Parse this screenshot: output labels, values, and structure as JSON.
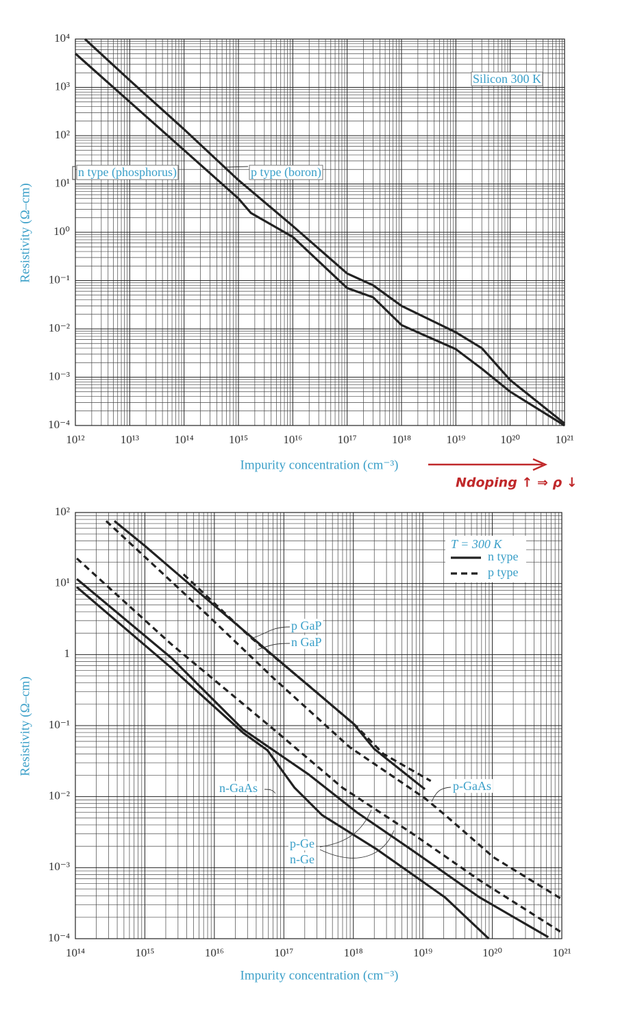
{
  "chart_data": [
    {
      "type": "line",
      "log_scale": true,
      "grid": true,
      "xlabel": "Impurity concentration (cm⁻³)",
      "ylabel": "Resistivity (Ω–cm)",
      "annotations": [
        "Silicon 300 K"
      ],
      "xlim": [
        1000000000000.0,
        1e+21
      ],
      "xticks": [
        {
          "value": 1000000000000.0,
          "label": "10¹²"
        },
        {
          "value": 10000000000000.0,
          "label": "10¹³"
        },
        {
          "value": 100000000000000.0,
          "label": "10¹⁴"
        },
        {
          "value": 1000000000000000.0,
          "label": "10¹⁵"
        },
        {
          "value": 1e+16,
          "label": "10¹⁶"
        },
        {
          "value": 1e+17,
          "label": "10¹⁷"
        },
        {
          "value": 1e+18,
          "label": "10¹⁸"
        },
        {
          "value": 1e+19,
          "label": "10¹⁹"
        },
        {
          "value": 1e+20,
          "label": "10²⁰"
        },
        {
          "value": 1e+21,
          "label": "10²¹"
        }
      ],
      "ylim": [
        0.0001,
        10000.0
      ],
      "yticks": [
        {
          "value": 0.0001,
          "label": "10⁻⁴"
        },
        {
          "value": 0.001,
          "label": "10⁻³"
        },
        {
          "value": 0.01,
          "label": "10⁻²"
        },
        {
          "value": 0.1,
          "label": "10⁻¹"
        },
        {
          "value": 1,
          "label": "10⁰"
        },
        {
          "value": 10,
          "label": "10¹"
        },
        {
          "value": 100,
          "label": "10²"
        },
        {
          "value": 1000,
          "label": "10³"
        },
        {
          "value": 10000,
          "label": "10⁴"
        }
      ],
      "series": [
        {
          "name": "n type (phosphorus)",
          "color": "#222222",
          "style": "solid",
          "x": [
            1000000000000.0,
            10000000000000.0,
            100000000000000.0,
            1000000000000000.0,
            1700000000000000.0,
            1e+16,
            1e+17,
            3e+17,
            1e+18,
            1e+19,
            3e+19,
            1e+20,
            1e+21
          ],
          "values": [
            5000,
            500,
            50,
            5,
            2.5,
            0.8,
            0.07,
            0.045,
            0.012,
            0.0038,
            0.0015,
            0.0005,
            0.0001
          ]
        },
        {
          "name": "p type (boron)",
          "color": "#222222",
          "style": "solid",
          "x": [
            1500000000000.0,
            10000000000000.0,
            100000000000000.0,
            1000000000000000.0,
            1e+16,
            1e+17,
            3e+17,
            1e+18,
            1e+19,
            3e+19,
            1e+20,
            1e+21
          ],
          "values": [
            10000,
            1400,
            135,
            12,
            1.35,
            0.14,
            0.08,
            0.03,
            0.0085,
            0.004,
            0.00087,
            0.00011
          ]
        }
      ]
    },
    {
      "type": "line",
      "log_scale": true,
      "grid": true,
      "xlabel": "Impurity concentration (cm⁻³)",
      "ylabel": "Resistivity (Ω–cm)",
      "legend_title": "T = 300 K",
      "legend": [
        {
          "label": "n type",
          "style": "solid"
        },
        {
          "label": "p type",
          "style": "dashed"
        }
      ],
      "xlim": [
        100000000000000.0,
        1e+21
      ],
      "xticks": [
        {
          "value": 100000000000000.0,
          "label": "10¹⁴"
        },
        {
          "value": 1000000000000000.0,
          "label": "10¹⁵"
        },
        {
          "value": 1e+16,
          "label": "10¹⁶"
        },
        {
          "value": 1e+17,
          "label": "10¹⁷"
        },
        {
          "value": 1e+18,
          "label": "10¹⁸"
        },
        {
          "value": 1e+19,
          "label": "10¹⁹"
        },
        {
          "value": 1e+20,
          "label": "10²⁰"
        },
        {
          "value": 1e+21,
          "label": "10²¹"
        }
      ],
      "ylim": [
        0.0001,
        100
      ],
      "yticks": [
        {
          "value": 0.0001,
          "label": "10⁻⁴"
        },
        {
          "value": 0.001,
          "label": "10⁻³"
        },
        {
          "value": 0.01,
          "label": "10⁻²"
        },
        {
          "value": 0.1,
          "label": "10⁻¹"
        },
        1,
        {
          "value": 10,
          "label": "10¹"
        },
        {
          "value": 100,
          "label": "10²"
        }
      ],
      "series": [
        {
          "name": "n GaP",
          "color": "#222222",
          "style": "solid",
          "x": [
            365000000000000.0,
            1000000000000000.0,
            1e+16,
            1e+17,
            1e+18,
            2e+18,
            1.07e+19
          ],
          "values": [
            76,
            34,
            4.9,
            0.72,
            0.107,
            0.047,
            0.0127
          ]
        },
        {
          "name": "p GaP",
          "color": "#222222",
          "style": "dashed",
          "x": [
            3600000000000000.0,
            3.3e+16,
            2.25e+17,
            1.1e+18,
            2.7e+18,
            1.3e+19
          ],
          "values": [
            13.5,
            1.76,
            0.37,
            0.098,
            0.04,
            0.0166
          ]
        },
        {
          "name": "p-GaAs",
          "color": "#222222",
          "style": "dashed",
          "x": [
            278000000000000.0,
            7500000000000000.0,
            7.2e+16,
            8.8e+17,
            1.07e+19,
            2.1e+19,
            1.04e+20,
            1e+21
          ],
          "values": [
            76,
            3.8,
            0.46,
            0.05,
            0.0095,
            0.0055,
            0.0014,
            0.00036
          ]
        },
        {
          "name": "p-Ge",
          "color": "#222222",
          "style": "dashed",
          "x": [
            105000000000000.0,
            2400000000000000.0,
            7.2e+16,
            7e+17,
            6.8e+18,
            6.6e+19,
            9.5e+20
          ],
          "values": [
            22.6,
            1.4,
            0.088,
            0.0133,
            0.0031,
            0.00066,
            0.000126
          ]
        },
        {
          "name": "n-Ge",
          "color": "#222222",
          "style": "solid",
          "x": [
            105000000000000.0,
            2400000000000000.0,
            2.6e+16,
            2.25e+17,
            1.1e+18,
            6.8e+18,
            6.6e+19,
            6.4e+20
          ],
          "values": [
            11.6,
            0.9,
            0.088,
            0.0207,
            0.0061,
            0.0018,
            0.00038,
            0.000105
          ]
        },
        {
          "name": "n-GaAs",
          "color": "#222222",
          "style": "solid",
          "x": [
            105000000000000.0,
            2400000000000000.0,
            2.6e+16,
            5.8e+16,
            1.43e+17,
            3.55e+17,
            2.2e+18,
            2.1e+19,
            8.9e+19
          ],
          "values": [
            8.9,
            0.65,
            0.079,
            0.045,
            0.0133,
            0.0055,
            0.0018,
            0.00038,
            0.0001
          ]
        }
      ]
    }
  ],
  "annotation": "Ndoping ↑ ⇒ ρ ↓"
}
